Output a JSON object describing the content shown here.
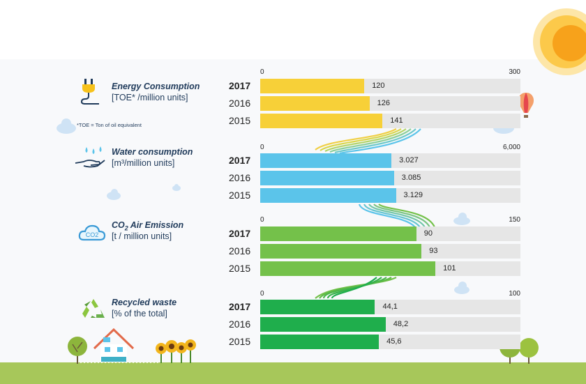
{
  "colors": {
    "energy": "#f7d038",
    "water": "#5bc4ea",
    "co2": "#74c14a",
    "waste": "#1fae4c",
    "track": "#e6e6e6",
    "title": "#1f3a5a",
    "sky_band": "#f8f9fb",
    "ground": "#a7c75a"
  },
  "icons": [
    "sun-icon",
    "hot-air-balloon-icon",
    "cloud-icon",
    "plug-icon",
    "water-hand-icon",
    "co2-cloud-icon",
    "recycle-icon",
    "tree-icon",
    "house-icon",
    "sunflower-icon"
  ],
  "chart_data": [
    {
      "type": "bar",
      "id": "energy",
      "title": "Energy Consumption",
      "unit": "[TOE* /million units]",
      "note": "*TOE = Ton of oil equivalent",
      "categories": [
        "2017",
        "2016",
        "2015"
      ],
      "values": [
        120,
        126,
        141
      ],
      "value_labels": [
        "120",
        "126",
        "141"
      ],
      "xlim": [
        0,
        300
      ],
      "axis_labels": [
        "0",
        "300"
      ]
    },
    {
      "type": "bar",
      "id": "water",
      "title": "Water consumption",
      "unit": "[m³/million units]",
      "categories": [
        "2017",
        "2016",
        "2015"
      ],
      "values": [
        3027,
        3085,
        3129
      ],
      "value_labels": [
        "3.027",
        "3.085",
        "3.129"
      ],
      "xlim": [
        0,
        6000
      ],
      "axis_labels": [
        "0",
        "6,000"
      ]
    },
    {
      "type": "bar",
      "id": "co2",
      "title_main": "CO",
      "title_sub": "2",
      "title_rest": " Air Emission",
      "unit": "[t / million units]",
      "categories": [
        "2017",
        "2016",
        "2015"
      ],
      "values": [
        90,
        93,
        101
      ],
      "value_labels": [
        "90",
        "93",
        "101"
      ],
      "xlim": [
        0,
        150
      ],
      "axis_labels": [
        "0",
        "150"
      ]
    },
    {
      "type": "bar",
      "id": "waste",
      "title": "Recycled waste",
      "unit": "[% of the total]",
      "categories": [
        "2017",
        "2016",
        "2015"
      ],
      "values": [
        44.1,
        48.2,
        45.6
      ],
      "value_labels": [
        "44,1",
        "48,2",
        "45,6"
      ],
      "xlim": [
        0,
        100
      ],
      "axis_labels": [
        "0",
        "100"
      ]
    }
  ]
}
